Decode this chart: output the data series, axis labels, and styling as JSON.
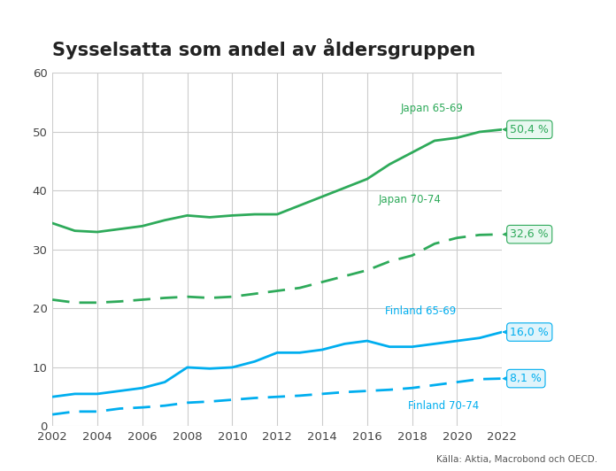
{
  "title": "Sysselsatta som andel av åldersgruppen",
  "source": "Källa: Aktia, Macrobond och OECD.",
  "years": [
    2002,
    2003,
    2004,
    2005,
    2006,
    2007,
    2008,
    2009,
    2010,
    2011,
    2012,
    2013,
    2014,
    2015,
    2016,
    2017,
    2018,
    2019,
    2020,
    2021,
    2022
  ],
  "japan_65_69": [
    34.5,
    33.2,
    33.0,
    33.5,
    34.0,
    35.0,
    35.8,
    35.5,
    35.8,
    36.0,
    36.0,
    37.5,
    39.0,
    40.5,
    42.0,
    44.5,
    46.5,
    48.5,
    49.0,
    50.0,
    50.4
  ],
  "japan_70_74": [
    21.5,
    21.0,
    21.0,
    21.2,
    21.5,
    21.8,
    22.0,
    21.8,
    22.0,
    22.5,
    23.0,
    23.5,
    24.5,
    25.5,
    26.5,
    28.0,
    29.0,
    31.0,
    32.0,
    32.5,
    32.6
  ],
  "finland_65_69": [
    5.0,
    5.5,
    5.5,
    6.0,
    6.5,
    7.5,
    10.0,
    9.8,
    10.0,
    11.0,
    12.5,
    12.5,
    13.0,
    14.0,
    14.5,
    13.5,
    13.5,
    14.0,
    14.5,
    15.0,
    16.0
  ],
  "finland_70_74": [
    2.0,
    2.5,
    2.5,
    3.0,
    3.2,
    3.5,
    4.0,
    4.2,
    4.5,
    4.8,
    5.0,
    5.2,
    5.5,
    5.8,
    6.0,
    6.2,
    6.5,
    7.0,
    7.5,
    8.0,
    8.1
  ],
  "color_green": "#2EAA5A",
  "color_cyan": "#00AEEF",
  "ylim": [
    0,
    60
  ],
  "yticks": [
    0,
    10,
    20,
    30,
    40,
    50,
    60
  ],
  "background_color": "#FFFFFF",
  "grid_color": "#CCCCCC",
  "title_color": "#222222",
  "label_japan_65_69": "Japan 65-69",
  "label_japan_70_74": "Japan 70-74",
  "label_finland_65_69": "Finland 65-69",
  "label_finland_70_74": "Finland 70-74",
  "end_label_japan_65_69": "50,4 %",
  "end_label_japan_70_74": "32,6 %",
  "end_label_finland_65_69": "16,0 %",
  "end_label_finland_70_74": "8,1 %"
}
